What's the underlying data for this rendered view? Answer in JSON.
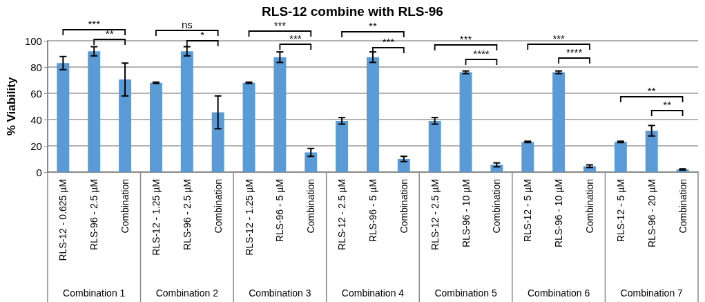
{
  "chart_data": {
    "type": "bar",
    "title": "RLS-12 combine with RLS-96",
    "ylabel": "% Viability",
    "categories": [
      "RLS-12 - 0.625 µM",
      "RLS-96 - 2.5 µM",
      "Combination",
      "RLS-12 - 1.25 µM",
      "RLS-96 - 2.5 µM",
      "Combination",
      "RLS-12 - 1.25 µM",
      "RLS-96 - 5 µM",
      "Combination",
      "RLS-12 - 2.5 µM",
      "RLS-96 - 5 µM",
      "Combination",
      "RLS-12 - 2.5 µM",
      "RLS-96 - 10 µM",
      "Combination",
      "RLS-12 - 5 µM",
      "RLS-96 - 10 µM",
      "Combination",
      "RLS-12 - 5 µM",
      "RLS-96 - 20 µM",
      "Combination"
    ],
    "values": [
      83,
      92,
      70.5,
      68,
      92,
      45.5,
      68,
      87.5,
      15,
      39,
      87.5,
      10,
      39,
      76,
      5.5,
      23,
      76,
      4.5,
      23,
      31.5,
      2
    ],
    "errors": [
      5,
      3.5,
      12.5,
      0.5,
      3.5,
      12.5,
      0.5,
      4,
      3,
      2.5,
      4,
      2,
      2.5,
      1,
      1.5,
      0.5,
      1,
      1,
      0.5,
      4,
      0.5
    ],
    "color": "#5b9bd5",
    "ylim": [
      0,
      100
    ],
    "yticks": [
      0,
      20,
      40,
      60,
      80,
      100
    ],
    "grid": "y",
    "annotations": [
      "Combination 1",
      "Combination 2",
      "Combination 3",
      "Combination 4",
      "Combination 5",
      "Combination 6",
      "Combination 7",
      "***",
      "**",
      "ns",
      "*",
      "***",
      "***",
      "**",
      "***",
      "***",
      "****",
      "***",
      "****",
      "**",
      "**"
    ]
  }
}
